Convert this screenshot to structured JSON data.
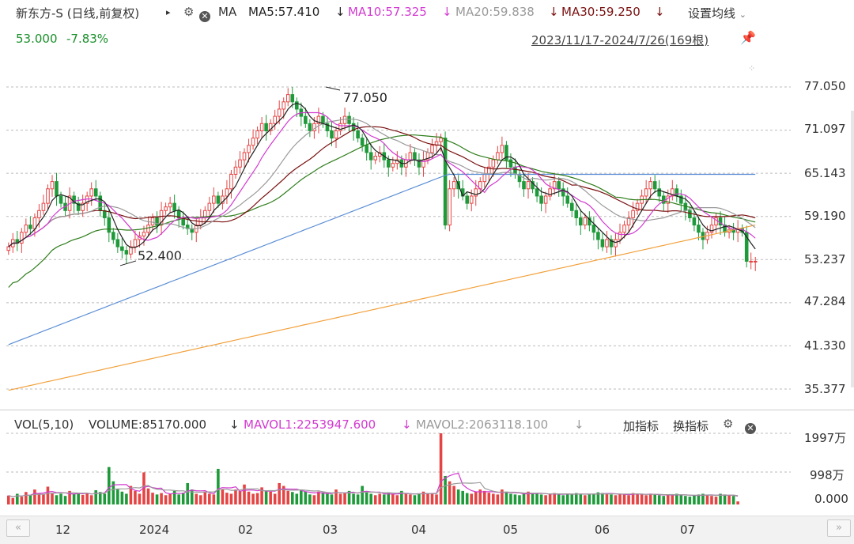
{
  "header": {
    "title": "新东方-S (日线,前复权)",
    "arrow": "▸",
    "ma_label": "MA",
    "ma5": "MA5:57.410",
    "ma10": "MA10:57.325",
    "ma20": "MA20:59.838",
    "ma30": "MA30:59.250",
    "down": "↓",
    "settings": "设置均线",
    "price": "53.000",
    "change": "-7.83%",
    "range": "2023/11/17-2024/7/26(169根)"
  },
  "vol_header": {
    "vol": "VOL(5,10)",
    "volume": "VOLUME:85170.000",
    "mavol1": "MAVOL1:2253947.600",
    "mavol2": "MAVOL2:2063118.100",
    "down": "↓",
    "add_indicator": "加指标",
    "switch_indicator": "换指标"
  },
  "colors": {
    "up": "#e54444",
    "down": "#1e9a3a",
    "ma5": "#222222",
    "ma10": "#d23ad0",
    "ma20": "#9a9a9a",
    "ma30": "#7a1010",
    "ma60": "#2e7d1a",
    "ma120": "#5b8ed6",
    "ma250": "#f2a03a"
  },
  "chart_data": [
    {
      "type": "candlestick",
      "title": "新东方-S (日线,前复权)",
      "range": "2023/11/17-2024/7/26",
      "bars": 169,
      "y_ticks": [
        "77.050",
        "71.097",
        "65.143",
        "59.190",
        "53.237",
        "47.284",
        "41.330",
        "35.377"
      ],
      "ylim": [
        32.5,
        79
      ],
      "x_ticks": [
        "12",
        "2024",
        "02",
        "03",
        "04",
        "05",
        "06",
        "07"
      ],
      "annotations": [
        {
          "label": "77.050",
          "value": 77.05,
          "kind": "high"
        },
        {
          "label": "52.400",
          "value": 52.4,
          "kind": "low"
        }
      ],
      "close": [
        55,
        56,
        55.5,
        57,
        58,
        57.5,
        59,
        60,
        61,
        63,
        64,
        62,
        61,
        60,
        62,
        61,
        60,
        61,
        62,
        63,
        62,
        60,
        59,
        57,
        56,
        55,
        54.5,
        54,
        55,
        56,
        56.5,
        57,
        58,
        59,
        58,
        60,
        60.5,
        61,
        60,
        59,
        58,
        57.5,
        57,
        58,
        59,
        60,
        61,
        62,
        61,
        62,
        63,
        65,
        66,
        67,
        68,
        69,
        70,
        71,
        72,
        71,
        72,
        73,
        74,
        75,
        76,
        75,
        74,
        73,
        72,
        71,
        72,
        73,
        72,
        71,
        70,
        71,
        72,
        73,
        72,
        71,
        70,
        69,
        68,
        67,
        67.5,
        68,
        67,
        66,
        66.5,
        67,
        66,
        67,
        68,
        67,
        66,
        67,
        68,
        69,
        69.5,
        70,
        58,
        63,
        64,
        63,
        62,
        61,
        62,
        63,
        64,
        65,
        66,
        67,
        68,
        69,
        67,
        66,
        65,
        64,
        63,
        64,
        63,
        62,
        61,
        62,
        63,
        64,
        63,
        62,
        61,
        60,
        59,
        58,
        59,
        58,
        57,
        56,
        55,
        56,
        55,
        56,
        57,
        58,
        59,
        60,
        61,
        62,
        63,
        64,
        63,
        62,
        61,
        62,
        63,
        62,
        61,
        60,
        59,
        58,
        57,
        56,
        57,
        58,
        59,
        58,
        57,
        57.4,
        57,
        57.5,
        57,
        53,
        53,
        53
      ],
      "ma_series": [
        "MA5",
        "MA10",
        "MA20",
        "MA30"
      ]
    },
    {
      "type": "bar",
      "title": "VOL(5,10)",
      "y_ticks": [
        "1997万",
        "998万",
        "0.000"
      ],
      "ylim": [
        0,
        1997
      ],
      "values": [
        250,
        180,
        300,
        220,
        350,
        260,
        420,
        300,
        280,
        500,
        320,
        260,
        300,
        240,
        380,
        290,
        330,
        270,
        310,
        260,
        400,
        350,
        300,
        1050,
        650,
        420,
        360,
        300,
        520,
        380,
        300,
        900,
        450,
        330,
        280,
        320,
        260,
        300,
        380,
        280,
        330,
        600,
        420,
        300,
        260,
        360,
        300,
        280,
        1000,
        420,
        330,
        300,
        420,
        380,
        560,
        360,
        300,
        320,
        480,
        400,
        360,
        300,
        600,
        520,
        380,
        350,
        300,
        420,
        360,
        280,
        260,
        360,
        340,
        300,
        280,
        420,
        300,
        320,
        380,
        300,
        280,
        520,
        360,
        300,
        260,
        300,
        280,
        320,
        300,
        260,
        380,
        300,
        280,
        260,
        300,
        360,
        320,
        300,
        280,
        1997,
        800,
        650,
        520,
        420,
        380,
        320,
        300,
        360,
        420,
        380,
        330,
        300,
        280,
        420,
        360,
        300,
        280,
        260,
        300,
        360,
        320,
        300,
        280,
        260,
        300,
        320,
        280,
        260,
        300,
        280,
        320,
        300,
        260,
        280,
        300,
        340,
        320,
        300,
        280,
        260,
        300,
        280,
        260,
        320,
        300,
        280,
        260,
        300,
        280,
        260,
        240,
        260,
        280,
        300,
        260,
        240,
        220,
        260,
        280,
        300,
        260,
        240,
        220,
        300,
        280,
        260,
        240,
        85
      ]
    }
  ]
}
